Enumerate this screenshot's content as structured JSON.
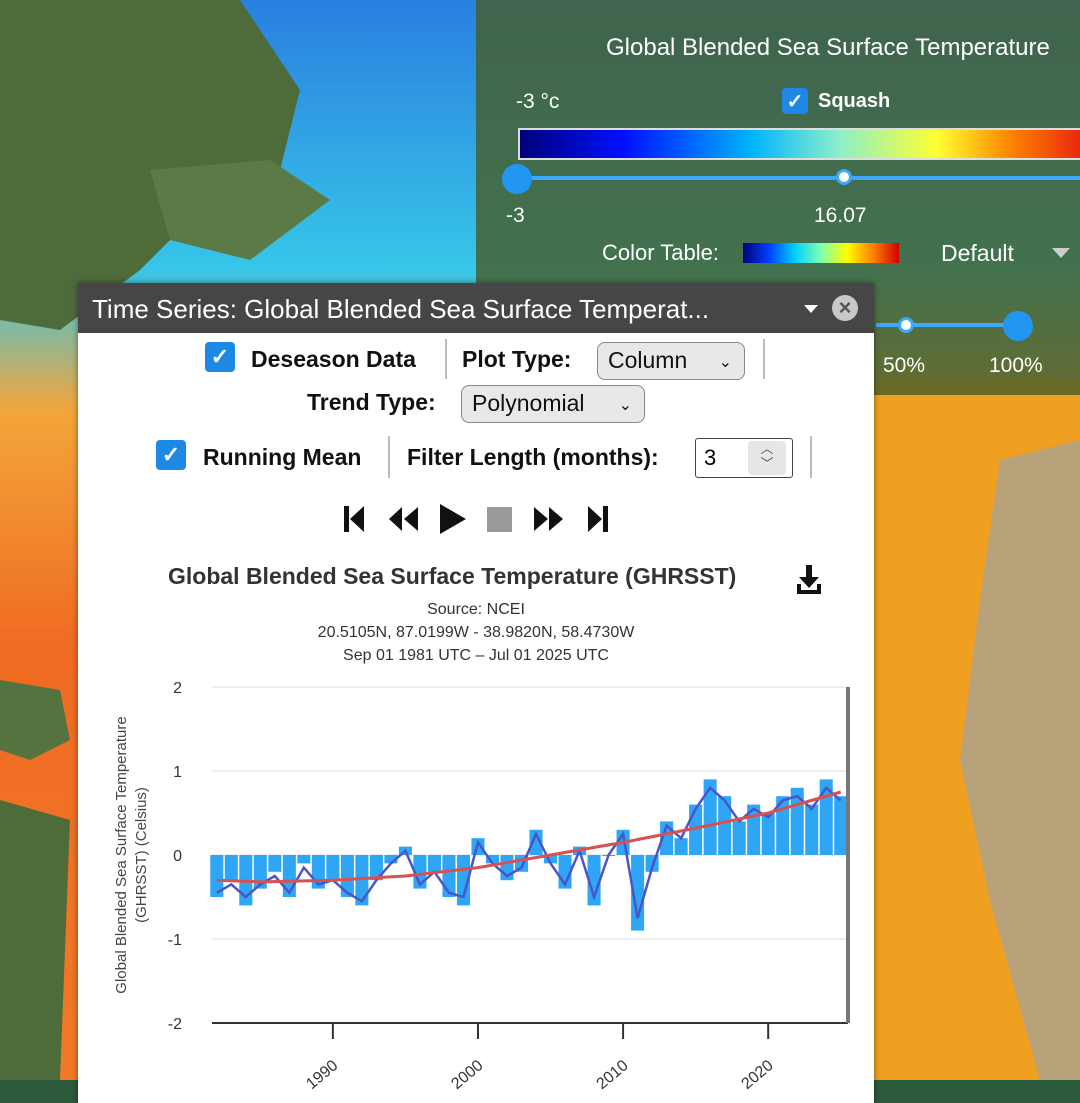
{
  "legend": {
    "title": "Global Blended Sea Surface Temperature",
    "min_label": "-3 °c",
    "squash_label": "Squash",
    "squash_checked": true,
    "slider_low": "-3",
    "slider_mid": "16.07",
    "color_table_label": "Color Table:",
    "color_table_value": "Default",
    "opacity_labels": [
      "50%",
      "100%"
    ]
  },
  "panel": {
    "title": "Time Series: Global Blended Sea Surface Temperat...",
    "deseason_label": "Deseason Data",
    "plot_type_label": "Plot Type:",
    "plot_type_value": "Column",
    "trend_type_label": "Trend Type:",
    "trend_type_value": "Polynomial",
    "running_mean_label": "Running Mean",
    "filter_length_label": "Filter Length (months):",
    "filter_length_value": "3"
  },
  "chart_data": {
    "type": "bar",
    "title": "Global Blended Sea Surface Temperature (GHRSST)",
    "subtitles": [
      "Source: NCEI",
      "20.5105N, 87.0199W - 38.9820N, 58.4730W",
      "Sep 01 1981 UTC – Jul 01 2025 UTC"
    ],
    "ylabel_lines": [
      "Global Blended Sea Surface Temperature",
      "(GHRSST) (Celsius)"
    ],
    "ylim": [
      -2,
      2
    ],
    "yticks": [
      "2",
      "1",
      "0",
      "-1",
      "-2"
    ],
    "xlim": [
      1981.67,
      2025.5
    ],
    "xticks": [
      1990,
      2000,
      2010,
      2020
    ],
    "xtick_labels": [
      "1990",
      "2000",
      "2010",
      "2020"
    ],
    "series": [
      {
        "kind": "columns",
        "x": [
          1982,
          1983,
          1984,
          1985,
          1986,
          1987,
          1988,
          1989,
          1990,
          1991,
          1992,
          1993,
          1994,
          1995,
          1996,
          1997,
          1998,
          1999,
          2000,
          2001,
          2002,
          2003,
          2004,
          2005,
          2006,
          2007,
          2008,
          2009,
          2010,
          2011,
          2012,
          2013,
          2014,
          2015,
          2016,
          2017,
          2018,
          2019,
          2020,
          2021,
          2022,
          2023,
          2024,
          2025
        ],
        "values": [
          -0.5,
          -0.3,
          -0.6,
          -0.4,
          -0.2,
          -0.5,
          -0.1,
          -0.4,
          -0.3,
          -0.5,
          -0.6,
          -0.3,
          -0.1,
          0.1,
          -0.4,
          -0.2,
          -0.5,
          -0.6,
          0.2,
          -0.1,
          -0.3,
          -0.2,
          0.3,
          -0.1,
          -0.4,
          0.1,
          -0.6,
          0.0,
          0.3,
          -0.9,
          -0.2,
          0.4,
          0.2,
          0.6,
          0.9,
          0.7,
          0.4,
          0.6,
          0.5,
          0.7,
          0.8,
          0.6,
          0.9,
          0.7
        ]
      },
      {
        "kind": "running-mean",
        "x": [
          1982,
          1983,
          1984,
          1985,
          1986,
          1987,
          1988,
          1989,
          1990,
          1991,
          1992,
          1993,
          1994,
          1995,
          1996,
          1997,
          1998,
          1999,
          2000,
          2001,
          2002,
          2003,
          2004,
          2005,
          2006,
          2007,
          2008,
          2009,
          2010,
          2011,
          2012,
          2013,
          2014,
          2015,
          2016,
          2017,
          2018,
          2019,
          2020,
          2021,
          2022,
          2023,
          2024,
          2025
        ],
        "values": [
          -0.45,
          -0.35,
          -0.5,
          -0.35,
          -0.25,
          -0.45,
          -0.15,
          -0.35,
          -0.3,
          -0.45,
          -0.55,
          -0.3,
          -0.1,
          0.05,
          -0.35,
          -0.2,
          -0.45,
          -0.5,
          0.15,
          -0.1,
          -0.25,
          -0.15,
          0.25,
          -0.1,
          -0.35,
          0.05,
          -0.5,
          0.0,
          0.25,
          -0.75,
          -0.15,
          0.35,
          0.2,
          0.55,
          0.8,
          0.65,
          0.4,
          0.55,
          0.45,
          0.65,
          0.7,
          0.55,
          0.8,
          0.65
        ]
      },
      {
        "kind": "polynomial-trend",
        "x": [
          1982,
          1985,
          1990,
          1995,
          2000,
          2005,
          2010,
          2015,
          2020,
          2025
        ],
        "values": [
          -0.3,
          -0.32,
          -0.3,
          -0.25,
          -0.15,
          0.0,
          0.15,
          0.32,
          0.5,
          0.75
        ]
      }
    ],
    "colors": {
      "columns": "#2fa6f5",
      "running_mean": "#4a55c8",
      "trend": "#d85050"
    }
  }
}
